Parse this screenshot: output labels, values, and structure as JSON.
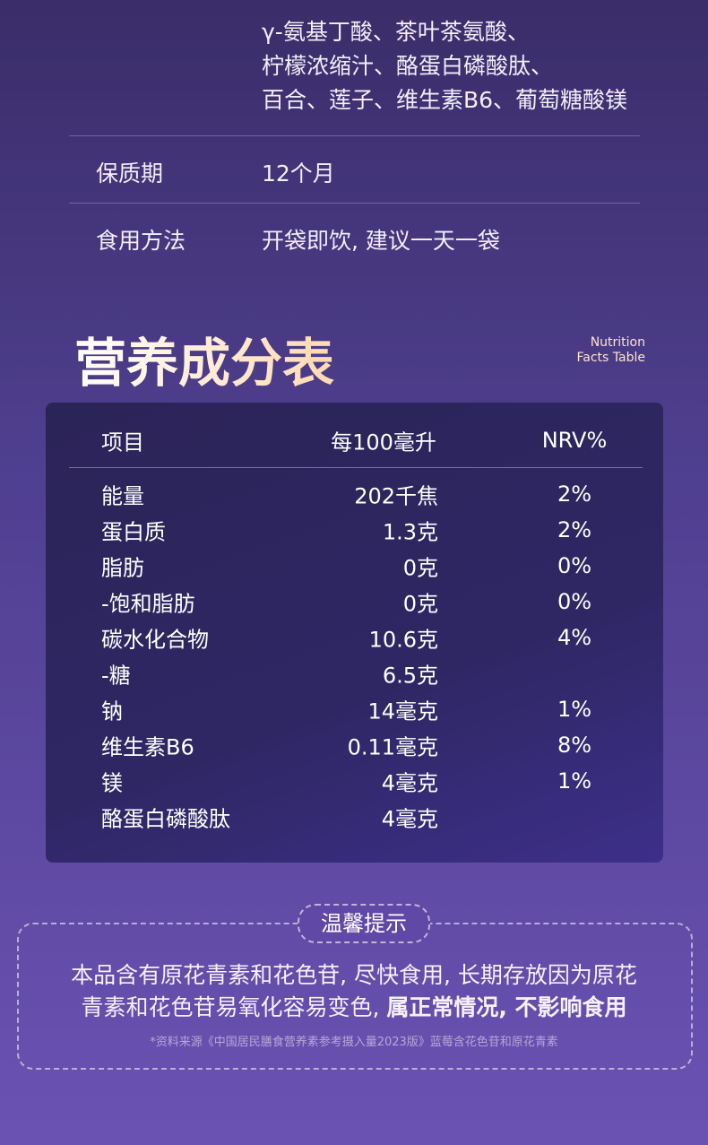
{
  "ingredients": {
    "lines": [
      "γ-氨基丁酸、茶叶茶氨酸、",
      "柠檬浓缩汁、酪蛋白磷酸肽、",
      "百合、莲子、维生素B6、葡萄糖酸镁"
    ]
  },
  "info_rows": [
    {
      "label": "保质期",
      "value": "12个月"
    },
    {
      "label": "食用方法",
      "value": "开袋即饮, 建议一天一袋"
    }
  ],
  "nutrition": {
    "title": "营养成分表",
    "subtitle": [
      "Nutrition",
      "Facts Table"
    ],
    "header": [
      "项目",
      "每100毫升",
      "NRV%"
    ],
    "rows": [
      [
        "能量",
        "202千焦",
        "2%"
      ],
      [
        "蛋白质",
        "1.3克",
        "2%"
      ],
      [
        "脂肪",
        "0克",
        "0%"
      ],
      [
        "-饱和脂肪",
        "0克",
        "0%"
      ],
      [
        "碳水化合物",
        "10.6克",
        "4%"
      ],
      [
        "-糖",
        "6.5克"
      ],
      [
        "钠",
        "14毫克",
        "1%"
      ],
      [
        "维生素B6",
        "0.11毫克",
        "8%"
      ],
      [
        "镁",
        "4毫克",
        "1%"
      ],
      [
        "酪蛋白磷酸肽",
        "4毫克"
      ]
    ]
  },
  "notice": {
    "title": "温馨提示",
    "line1": "本品含有原花青素和花色苷, 尽快食用, 长期存放因为原花",
    "line2": "青素和花色苷易氧化容易变色,",
    "line2_bold": "属正常情况, 不影响食用",
    "footnote": "*资料来源《中国居民膳食营养素参考摄入量2023版》蓝莓含花色苷和原花青素"
  }
}
